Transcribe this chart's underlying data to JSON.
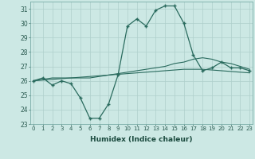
{
  "xlabel": "Humidex (Indice chaleur)",
  "background_color": "#cce8e4",
  "grid_color": "#aecfcb",
  "line_color": "#2a6b5e",
  "x_values": [
    0,
    1,
    2,
    3,
    4,
    5,
    6,
    7,
    8,
    9,
    10,
    11,
    12,
    13,
    14,
    15,
    16,
    17,
    18,
    19,
    20,
    21,
    22,
    23
  ],
  "line1": [
    26.0,
    26.2,
    25.7,
    26.0,
    25.8,
    24.8,
    23.4,
    23.4,
    24.4,
    26.4,
    29.8,
    30.3,
    29.8,
    30.9,
    31.2,
    31.2,
    30.0,
    27.8,
    26.7,
    26.9,
    27.3,
    26.9,
    26.9,
    26.7
  ],
  "line2": [
    26.0,
    26.1,
    26.2,
    26.2,
    26.2,
    26.2,
    26.2,
    26.3,
    26.4,
    26.5,
    26.6,
    26.7,
    26.8,
    26.9,
    27.0,
    27.2,
    27.3,
    27.5,
    27.6,
    27.5,
    27.3,
    27.2,
    27.0,
    26.8
  ],
  "line3": [
    26.0,
    26.05,
    26.1,
    26.15,
    26.2,
    26.25,
    26.3,
    26.35,
    26.4,
    26.45,
    26.5,
    26.55,
    26.6,
    26.65,
    26.7,
    26.75,
    26.8,
    26.8,
    26.8,
    26.75,
    26.7,
    26.65,
    26.6,
    26.55
  ],
  "ylim": [
    23,
    31.5
  ],
  "yticks": [
    23,
    24,
    25,
    26,
    27,
    28,
    29,
    30,
    31
  ],
  "xlim": [
    -0.3,
    23.3
  ]
}
